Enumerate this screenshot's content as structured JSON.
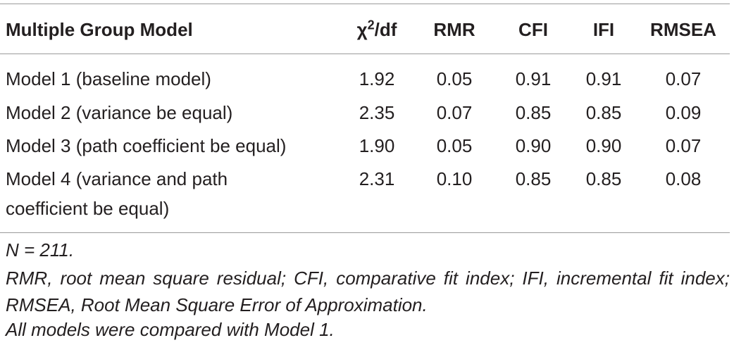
{
  "table": {
    "header": [
      {
        "text": "Multiple Group Model"
      },
      {
        "base": "χ",
        "sup": "2",
        "rest": "/df"
      },
      {
        "text": "RMR"
      },
      {
        "text": "CFI"
      },
      {
        "text": "IFI"
      },
      {
        "text": "RMSEA"
      }
    ],
    "rows": [
      [
        "Model 1 (baseline model)",
        "1.92",
        "0.05",
        "0.91",
        "0.91",
        "0.07"
      ],
      [
        "Model 2 (variance be equal)",
        "2.35",
        "0.07",
        "0.85",
        "0.85",
        "0.09"
      ],
      [
        "Model 3 (path coefficient be equal)",
        "1.90",
        "0.05",
        "0.90",
        "0.90",
        "0.07"
      ],
      [
        "Model 4 (variance and path coefficient be equal)",
        "2.31",
        "0.10",
        "0.85",
        "0.85",
        "0.08"
      ]
    ]
  },
  "notes": [
    "N = 211.",
    "RMR, root mean square residual; CFI, comparative fit index; IFI, incremental fit index; RMSEA, Root Mean Square Error of Approximation.",
    "All models were compared with Model 1."
  ]
}
